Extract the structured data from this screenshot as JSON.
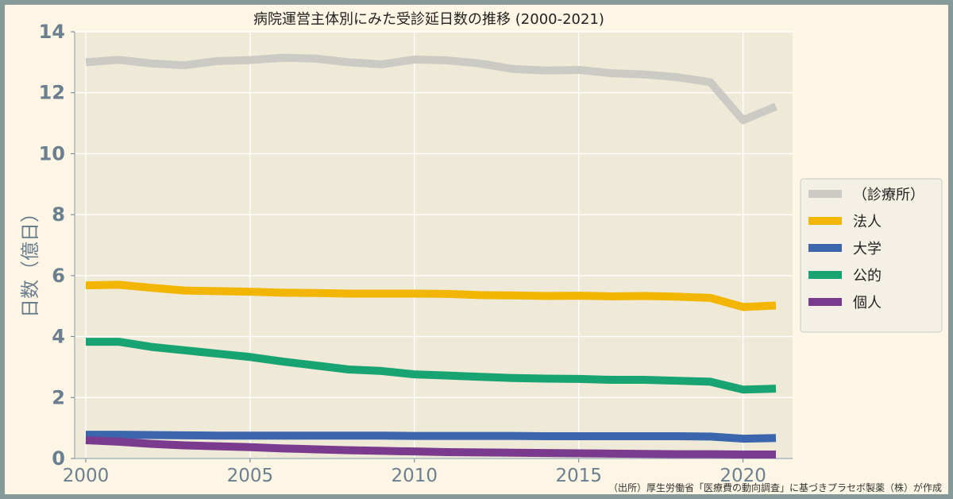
{
  "chart_data": {
    "type": "line",
    "title": "病院運営主体別にみた受診延日数の推移 (2000-2021)",
    "ylabel": "日数（億日）",
    "xlabel": "",
    "source": "（出所）厚生労働省「医療費の動向調査」に基づきプラセボ製薬（株）が作成",
    "xlim": [
      2000,
      2021
    ],
    "ylim": [
      0,
      14
    ],
    "xticks": [
      2000,
      2005,
      2010,
      2015,
      2020
    ],
    "yticks": [
      0,
      2,
      4,
      6,
      8,
      10,
      12,
      14
    ],
    "grid": true,
    "legend_position": "right",
    "x": [
      2000,
      2001,
      2002,
      2003,
      2004,
      2005,
      2006,
      2007,
      2008,
      2009,
      2010,
      2011,
      2012,
      2013,
      2014,
      2015,
      2016,
      2017,
      2018,
      2019,
      2020,
      2021
    ],
    "series": [
      {
        "name": "（診療所）",
        "color": "#cccac4",
        "values": [
          13.0,
          13.08,
          12.96,
          12.9,
          13.04,
          13.07,
          13.15,
          13.12,
          13.0,
          12.93,
          13.09,
          13.06,
          12.96,
          12.78,
          12.73,
          12.75,
          12.64,
          12.6,
          12.51,
          12.35,
          11.1,
          11.55
        ]
      },
      {
        "name": "法人",
        "color": "#f2b600",
        "values": [
          5.68,
          5.7,
          5.6,
          5.51,
          5.49,
          5.47,
          5.44,
          5.43,
          5.41,
          5.41,
          5.41,
          5.4,
          5.36,
          5.35,
          5.33,
          5.34,
          5.32,
          5.33,
          5.31,
          5.27,
          4.97,
          5.02
        ]
      },
      {
        "name": "大学",
        "color": "#3b65ad",
        "values": [
          0.78,
          0.78,
          0.77,
          0.76,
          0.75,
          0.75,
          0.75,
          0.75,
          0.75,
          0.75,
          0.74,
          0.74,
          0.74,
          0.74,
          0.73,
          0.73,
          0.73,
          0.73,
          0.73,
          0.72,
          0.65,
          0.67
        ]
      },
      {
        "name": "公的",
        "color": "#18a373",
        "values": [
          3.83,
          3.83,
          3.66,
          3.55,
          3.44,
          3.33,
          3.18,
          3.05,
          2.92,
          2.87,
          2.76,
          2.72,
          2.68,
          2.64,
          2.62,
          2.61,
          2.58,
          2.58,
          2.55,
          2.52,
          2.26,
          2.29
        ]
      },
      {
        "name": "個人",
        "color": "#7a3b8e",
        "values": [
          0.6,
          0.55,
          0.48,
          0.43,
          0.4,
          0.37,
          0.33,
          0.3,
          0.27,
          0.25,
          0.23,
          0.21,
          0.2,
          0.19,
          0.18,
          0.17,
          0.16,
          0.15,
          0.14,
          0.14,
          0.13,
          0.13
        ]
      }
    ]
  }
}
